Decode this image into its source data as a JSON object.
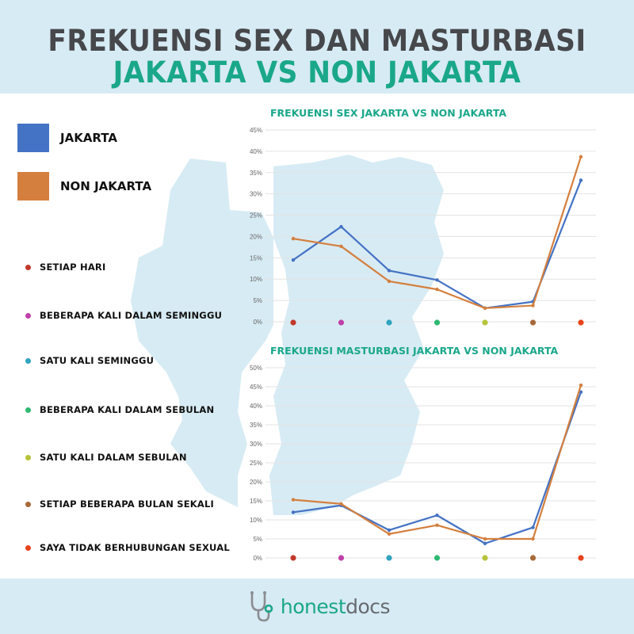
{
  "header": {
    "title_line1": "FREKUENSI SEX DAN MASTURBASI",
    "title_line2": "JAKARTA VS NON JAKARTA"
  },
  "legend": {
    "series": [
      {
        "label": "JAKARTA",
        "color": "#4472c4"
      },
      {
        "label": "NON JAKARTA",
        "color": "#d47f3e"
      }
    ],
    "categories": [
      {
        "label": "SETIAP HARI",
        "color": "#c0392b"
      },
      {
        "label": "BEBERAPA KALI DALAM SEMINGGU",
        "color": "#c040a8"
      },
      {
        "label": "SATU KALI SEMINGGU",
        "color": "#2fa3c0"
      },
      {
        "label": "BEBERAPA KALI DALAM SEBULAN",
        "color": "#2eb872"
      },
      {
        "label": "SATU KALI DALAM SEBULAN",
        "color": "#b5c33a"
      },
      {
        "label": "SETIAP BEBERAPA BULAN SEKALI",
        "color": "#a8693a"
      },
      {
        "label": "SAYA TIDAK BERHUBUNGAN SEXUAL",
        "color": "#e8431a"
      }
    ]
  },
  "chart_data": [
    {
      "type": "line",
      "title": "FREKUENSI SEX JAKARTA VS NON JAKARTA",
      "categories": [
        "SETIAP HARI",
        "BEBERAPA KALI DALAM SEMINGGU",
        "SATU KALI SEMINGGU",
        "BEBERAPA KALI DALAM SEBULAN",
        "SATU KALI DALAM SEBULAN",
        "SETIAP BEBERAPA BULAN SEKALI",
        "SAYA TIDAK BERHUBUNGAN SEXUAL"
      ],
      "series": [
        {
          "name": "JAKARTA",
          "color": "#4472c4",
          "values": [
            14.5,
            22.3,
            12.0,
            9.8,
            3.2,
            4.7,
            33.2
          ]
        },
        {
          "name": "NON JAKARTA",
          "color": "#d47f3e",
          "values": [
            19.5,
            17.7,
            9.5,
            7.6,
            3.2,
            3.8,
            38.7
          ]
        }
      ],
      "ylim": [
        0,
        45
      ],
      "yticks": [
        "0%",
        "5%",
        "10%",
        "15%",
        "20%",
        "25%",
        "30%",
        "35%",
        "40%",
        "45%"
      ],
      "grid": true
    },
    {
      "type": "line",
      "title": "FREKUENSI MASTURBASI JAKARTA VS NON JAKARTA",
      "categories": [
        "SETIAP HARI",
        "BEBERAPA KALI DALAM SEMINGGU",
        "SATU KALI SEMINGGU",
        "BEBERAPA KALI DALAM SEBULAN",
        "SATU KALI DALAM SEBULAN",
        "SETIAP BEBERAPA BULAN SEKALI",
        "SAYA TIDAK BERHUBUNGAN SEXUAL"
      ],
      "series": [
        {
          "name": "JAKARTA",
          "color": "#4472c4",
          "values": [
            12.0,
            13.8,
            7.3,
            11.2,
            3.8,
            8.0,
            43.6
          ]
        },
        {
          "name": "NON JAKARTA",
          "color": "#d47f3e",
          "values": [
            15.3,
            14.2,
            6.3,
            8.6,
            5.0,
            5.0,
            45.4
          ]
        }
      ],
      "ylim": [
        0,
        50
      ],
      "yticks": [
        "0%",
        "5%",
        "10%",
        "15%",
        "20%",
        "25%",
        "30%",
        "35%",
        "40%",
        "45%",
        "50%"
      ],
      "grid": true
    }
  ],
  "footer": {
    "brand_part1": "honest",
    "brand_part2": "docs",
    "logo_icon": "stethoscope-icon",
    "accent_color": "#1aa78a"
  },
  "map_background_color": "#d7ebf4"
}
